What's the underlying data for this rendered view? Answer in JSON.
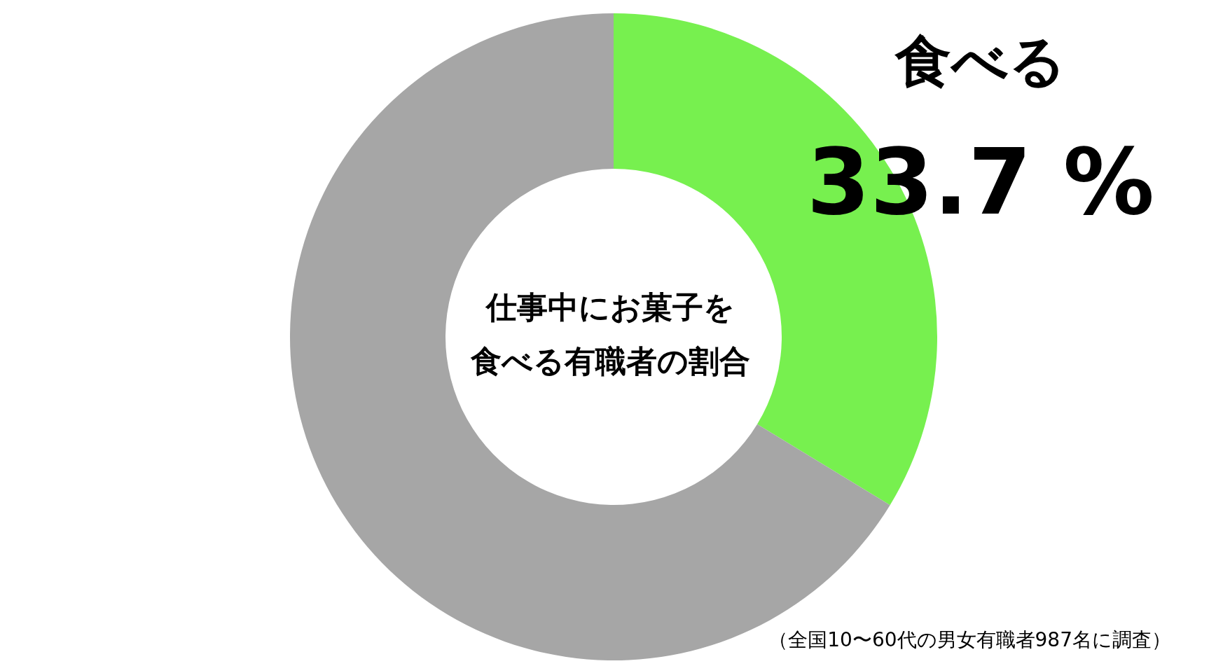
{
  "chart_data": {
    "type": "donut",
    "title": "仕事中にお菓子を食べる有職者の割合",
    "categories": [
      "食べる",
      null
    ],
    "values": [
      33.7,
      66.3
    ],
    "colors": [
      "#77f04f",
      "#a6a6a6"
    ],
    "value_labels": [
      "33.7 %",
      null
    ],
    "annotations": [
      "（全国10〜60代の男女有職者987名に調査）"
    ]
  }
}
